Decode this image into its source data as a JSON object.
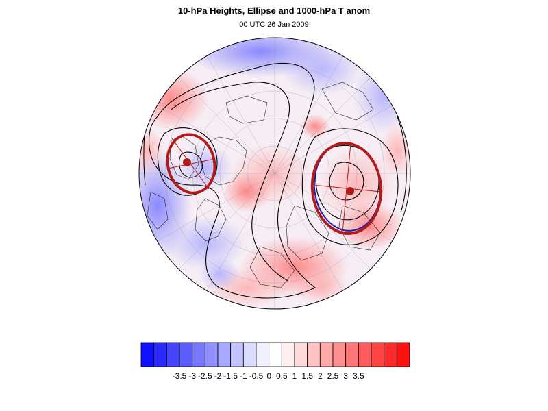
{
  "header": {
    "title": "10-hPa Heights, Ellipse and 1000-hPa T anom",
    "subtitle": "00 UTC 26 Jan 2009"
  },
  "colors": {
    "ellipse": "#b01c1c",
    "ellipse_alt": "#1c1cb0",
    "contour": "#000000"
  },
  "colorbar": {
    "tick_labels": [
      "-3.5",
      "-3",
      "-2.5",
      "-2",
      "-1.5",
      "-1",
      "-0.5",
      "0",
      "0.5",
      "1",
      "1.5",
      "2",
      "2.5",
      "3",
      "3.5"
    ],
    "colors": [
      "#1010ff",
      "#2a2aff",
      "#4444ff",
      "#5d5dff",
      "#7777ff",
      "#9090ff",
      "#a9a9ff",
      "#c3c3ff",
      "#dcdcff",
      "#f1f1ff",
      "#ffffff",
      "#fff1f1",
      "#ffdcdc",
      "#ffc3c3",
      "#ffa9a9",
      "#ff9090",
      "#ff7777",
      "#ff5d5d",
      "#ff4444",
      "#ff2a2a",
      "#ff1010"
    ]
  },
  "map": {
    "projection": "orthographic north-polar",
    "features": [
      "temperature-anomaly-shading",
      "height-contours",
      "coastlines",
      "graticule",
      "vortex-ellipses"
    ]
  }
}
